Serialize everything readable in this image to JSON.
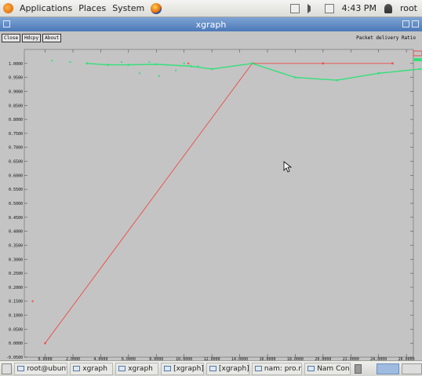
{
  "top_panel": {
    "menus": [
      "Applications",
      "Places",
      "System"
    ],
    "time": "4:43 PM",
    "user": "root"
  },
  "window": {
    "title": "xgraph"
  },
  "xgraph": {
    "buttons": [
      "Close",
      "Hdcpy",
      "About"
    ],
    "legend_title": "Packet delivery Ratio"
  },
  "chart_data": {
    "type": "line",
    "title": "Packet delivery Ratio",
    "xlim": [
      -1.5,
      26.5
    ],
    "ylim": [
      -0.05,
      1.05
    ],
    "x_ticks": [
      "0.0000",
      "2.0000",
      "4.0000",
      "6.0000",
      "8.0000",
      "10.0000",
      "12.0000",
      "14.0000",
      "16.0000",
      "18.0000",
      "20.0000",
      "22.0000",
      "24.0000",
      "26.0000"
    ],
    "y_ticks": [
      "-0.0500",
      "0.0000",
      "0.0500",
      "0.1000",
      "0.1500",
      "0.2000",
      "0.2500",
      "0.3000",
      "0.3500",
      "0.4000",
      "0.4500",
      "0.5000",
      "0.5500",
      "0.6000",
      "0.6500",
      "0.7000",
      "0.7500",
      "0.8000",
      "0.8500",
      "0.9000",
      "0.9500",
      "1.0000"
    ],
    "series": [
      {
        "color": "#ee4a48",
        "points": [
          [
            0.0,
            0.0
          ],
          [
            14.9,
            1.0
          ],
          [
            20.0,
            1.0
          ],
          [
            25.0,
            1.0
          ]
        ],
        "markers": [
          [
            -0.9,
            0.15
          ],
          [
            10.3,
            1.0
          ],
          [
            15.0,
            1.0
          ],
          [
            20.0,
            1.0
          ],
          [
            25.0,
            1.0
          ]
        ]
      },
      {
        "color": "#33e07a",
        "points": [
          [
            3.0,
            1.0
          ],
          [
            4.5,
            0.995
          ],
          [
            6.0,
            0.995
          ],
          [
            8.0,
            0.997
          ],
          [
            10.5,
            0.99
          ],
          [
            12.0,
            0.98
          ],
          [
            14.9,
            1.0
          ],
          [
            18.0,
            0.95
          ],
          [
            21.0,
            0.94
          ],
          [
            24.0,
            0.965
          ],
          [
            27.0,
            0.98
          ]
        ],
        "markers": [
          [
            0.5,
            1.01
          ],
          [
            1.8,
            1.005
          ],
          [
            5.5,
            1.005
          ],
          [
            6.8,
            0.965
          ],
          [
            7.5,
            1.005
          ],
          [
            8.2,
            0.955
          ],
          [
            9.4,
            0.975
          ],
          [
            10.0,
            1.0
          ],
          [
            11.0,
            0.99
          ]
        ]
      }
    ]
  },
  "taskbar": {
    "items": [
      "root@ubunt...",
      "xgraph",
      "xgraph",
      "[xgraph]",
      "[xgraph]",
      "nam: pro.nam",
      "Nam Consol..."
    ]
  }
}
